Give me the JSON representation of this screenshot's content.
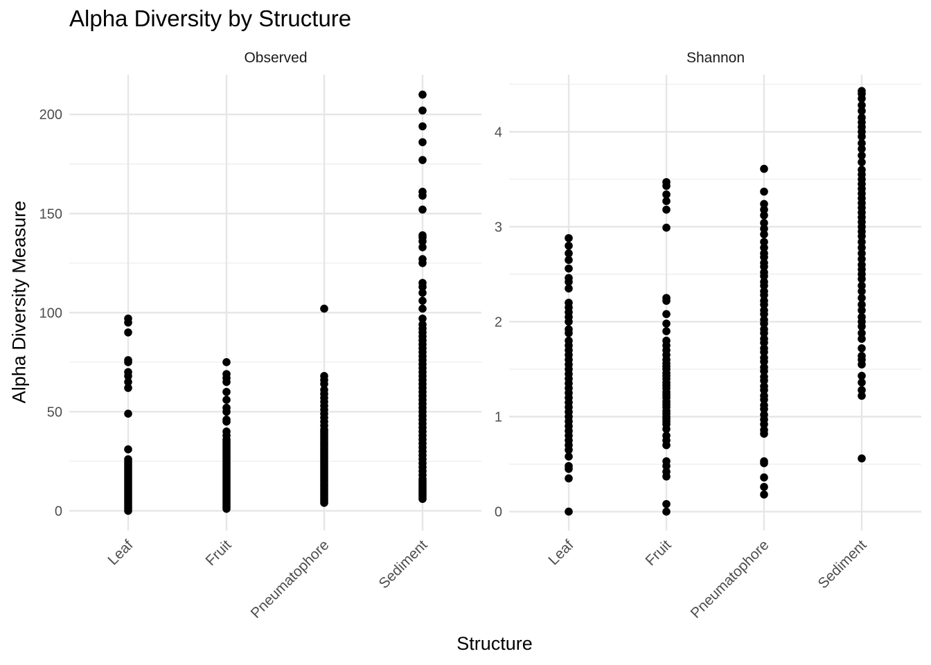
{
  "chart_data": {
    "type": "scatter",
    "title": "Alpha Diversity by Structure",
    "xlabel": "Structure",
    "ylabel": "Alpha Diversity Measure",
    "categories": [
      "Leaf",
      "Fruit",
      "Pneumatophore",
      "Sediment"
    ],
    "grid": true,
    "panels": [
      {
        "name": "Observed",
        "ylim": [
          -10,
          220
        ],
        "yticks": [
          0,
          50,
          100,
          150,
          200
        ],
        "series": [
          {
            "category": "Leaf",
            "values": [
              0,
              1,
              2,
              3,
              4,
              5,
              6,
              7,
              8,
              9,
              10,
              11,
              12,
              13,
              14,
              15,
              16,
              17,
              18,
              19,
              20,
              21,
              22,
              23,
              24,
              25,
              26,
              31,
              49,
              62,
              65,
              68,
              70,
              75,
              76,
              90,
              95,
              97
            ]
          },
          {
            "category": "Fruit",
            "values": [
              1,
              2,
              3,
              4,
              5,
              6,
              7,
              8,
              9,
              10,
              11,
              12,
              13,
              14,
              15,
              16,
              17,
              18,
              19,
              20,
              21,
              22,
              23,
              24,
              25,
              26,
              27,
              28,
              29,
              30,
              31,
              32,
              33,
              34,
              35,
              36,
              38,
              40,
              45,
              46,
              50,
              52,
              56,
              60,
              65,
              67,
              69,
              75
            ]
          },
          {
            "category": "Pneumatophore",
            "values": [
              4,
              5,
              6,
              7,
              8,
              9,
              10,
              11,
              12,
              13,
              14,
              15,
              16,
              17,
              18,
              19,
              20,
              21,
              22,
              23,
              24,
              25,
              26,
              27,
              28,
              29,
              30,
              31,
              32,
              33,
              34,
              35,
              36,
              37,
              38,
              39,
              40,
              41,
              43,
              45,
              47,
              49,
              51,
              53,
              55,
              57,
              59,
              61,
              64,
              66,
              68,
              102
            ]
          },
          {
            "category": "Sediment",
            "values": [
              6,
              7,
              8,
              9,
              10,
              11,
              12,
              13,
              14,
              15,
              16,
              18,
              20,
              22,
              24,
              26,
              28,
              30,
              32,
              34,
              36,
              38,
              40,
              42,
              44,
              46,
              48,
              50,
              52,
              54,
              56,
              58,
              60,
              62,
              64,
              66,
              68,
              70,
              72,
              74,
              76,
              78,
              80,
              82,
              84,
              86,
              88,
              90,
              92,
              94,
              97,
              102,
              106,
              110,
              113,
              115,
              125,
              127,
              133,
              136,
              138,
              139,
              152,
              159,
              161,
              177,
              186,
              194,
              202,
              210
            ]
          }
        ]
      },
      {
        "name": "Shannon",
        "ylim": [
          -0.2,
          4.6
        ],
        "yticks": [
          0,
          1,
          2,
          3,
          4
        ],
        "series": [
          {
            "category": "Leaf",
            "values": [
              0,
              0.35,
              0.45,
              0.48,
              0.58,
              0.65,
              0.7,
              0.75,
              0.8,
              0.85,
              0.9,
              0.95,
              1.0,
              1.05,
              1.1,
              1.15,
              1.2,
              1.25,
              1.3,
              1.35,
              1.4,
              1.45,
              1.5,
              1.55,
              1.6,
              1.65,
              1.7,
              1.75,
              1.8,
              1.88,
              1.92,
              2.0,
              2.05,
              2.1,
              2.15,
              2.2,
              2.35,
              2.42,
              2.46,
              2.56,
              2.65,
              2.72,
              2.8,
              2.88
            ]
          },
          {
            "category": "Fruit",
            "values": [
              0,
              0.08,
              0.37,
              0.42,
              0.48,
              0.53,
              0.7,
              0.75,
              0.8,
              0.87,
              0.92,
              0.95,
              0.98,
              1.0,
              1.03,
              1.06,
              1.1,
              1.13,
              1.16,
              1.2,
              1.23,
              1.26,
              1.3,
              1.33,
              1.36,
              1.4,
              1.43,
              1.46,
              1.5,
              1.53,
              1.56,
              1.6,
              1.65,
              1.7,
              1.75,
              1.8,
              1.9,
              1.98,
              2.08,
              2.22,
              2.25,
              2.99,
              3.18,
              3.27,
              3.34,
              3.43,
              3.47
            ]
          },
          {
            "category": "Pneumatophore",
            "values": [
              0.18,
              0.26,
              0.36,
              0.51,
              0.53,
              0.82,
              0.86,
              0.92,
              0.97,
              1.02,
              1.08,
              1.12,
              1.18,
              1.22,
              1.28,
              1.32,
              1.38,
              1.42,
              1.48,
              1.52,
              1.58,
              1.62,
              1.68,
              1.72,
              1.78,
              1.82,
              1.88,
              1.92,
              1.98,
              2.02,
              2.08,
              2.12,
              2.18,
              2.22,
              2.28,
              2.32,
              2.38,
              2.42,
              2.48,
              2.52,
              2.58,
              2.62,
              2.68,
              2.72,
              2.78,
              2.84,
              2.92,
              2.98,
              3.04,
              3.12,
              3.18,
              3.24,
              3.37,
              3.61
            ]
          },
          {
            "category": "Sediment",
            "values": [
              0.56,
              1.22,
              1.28,
              1.36,
              1.43,
              1.55,
              1.6,
              1.64,
              1.72,
              1.82,
              1.88,
              1.95,
              2.0,
              2.05,
              2.12,
              2.18,
              2.25,
              2.32,
              2.38,
              2.45,
              2.5,
              2.55,
              2.6,
              2.66,
              2.72,
              2.78,
              2.84,
              2.9,
              2.95,
              3.0,
              3.05,
              3.1,
              3.15,
              3.2,
              3.25,
              3.3,
              3.35,
              3.4,
              3.45,
              3.5,
              3.55,
              3.6,
              3.68,
              3.75,
              3.82,
              3.88,
              3.95,
              4.0,
              4.05,
              4.1,
              4.15,
              4.22,
              4.28,
              4.35,
              4.4,
              4.43
            ]
          }
        ]
      }
    ]
  }
}
